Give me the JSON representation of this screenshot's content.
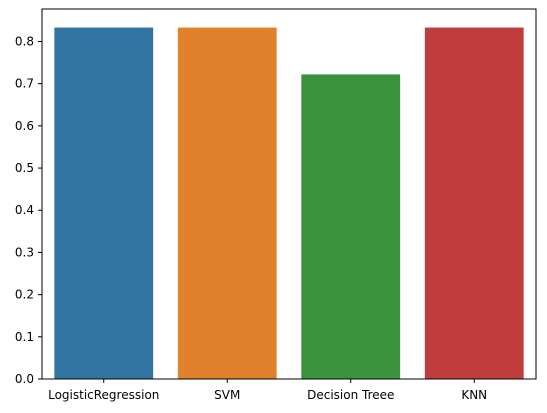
{
  "chart_data": {
    "type": "bar",
    "categories": [
      "LogisticRegression",
      "SVM",
      "Decision Treee",
      "KNN"
    ],
    "values": [
      0.833,
      0.833,
      0.722,
      0.833
    ],
    "colors": [
      "#3274a1",
      "#e1812c",
      "#3a923a",
      "#c03d3e"
    ],
    "ylim": [
      0,
      0.877
    ],
    "yticks": [
      0.0,
      0.1,
      0.2,
      0.3,
      0.4,
      0.5,
      0.6,
      0.7,
      0.8
    ],
    "ytick_labels": [
      "0.0",
      "0.1",
      "0.2",
      "0.3",
      "0.4",
      "0.5",
      "0.6",
      "0.7",
      "0.8"
    ],
    "title": "",
    "xlabel": "",
    "ylabel": "",
    "grid": false,
    "legend": false
  }
}
